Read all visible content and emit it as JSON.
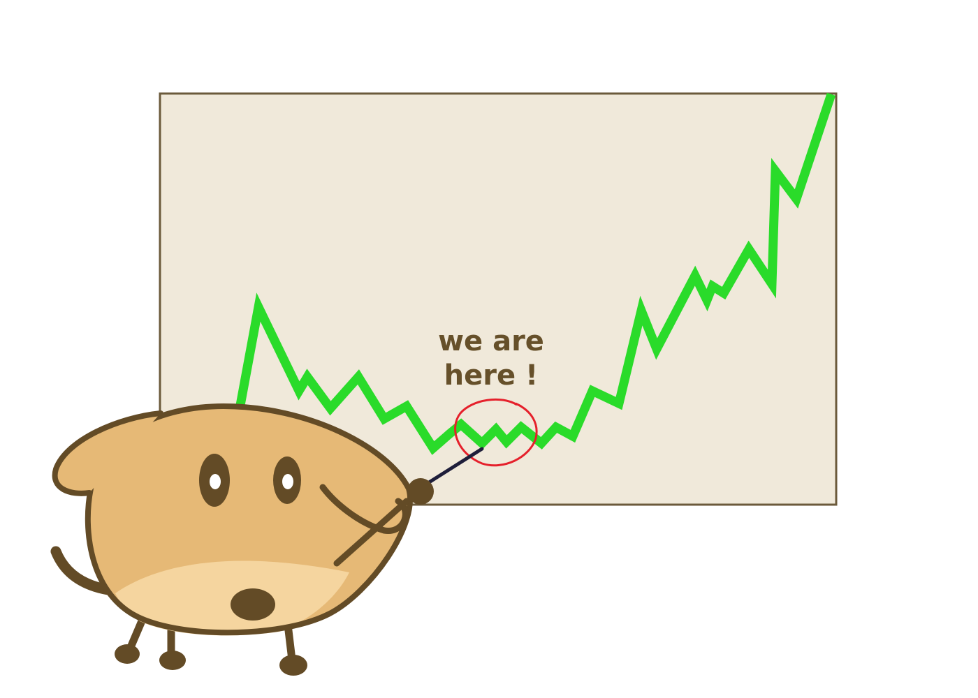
{
  "annotation": {
    "line1": "we are",
    "line2": "here !"
  },
  "colors": {
    "board_fill": "#f0e9da",
    "board_border": "#6b5a3b",
    "trend_line": "#2adb2a",
    "highlight_circle": "#e5202b",
    "text": "#66502a",
    "dog_outline": "#634b26",
    "dog_body": "#e6b976",
    "dog_belly": "#f5d59f",
    "pointer_stick": "#1e1e3a"
  },
  "icons": [
    "dog-mascot",
    "pointer-stick",
    "highlight-circle"
  ]
}
